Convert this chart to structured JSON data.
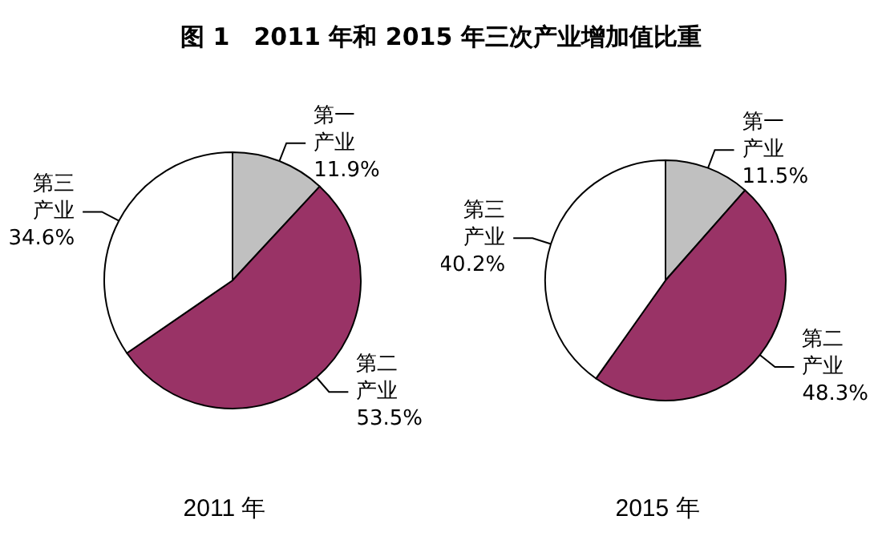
{
  "chart_data": [
    {
      "type": "pie",
      "title": "图 1　2011 年和 2015 年三次产业增加值比重",
      "xlabel": "2011 年",
      "categories": [
        "第一产业",
        "第二产业",
        "第三产业"
      ],
      "values": [
        11.9,
        53.5,
        34.6
      ],
      "colors": [
        "#c0c0c0",
        "#993366",
        "#ffffff"
      ],
      "value_labels": [
        "11.9%",
        "53.5%",
        "34.6%"
      ]
    },
    {
      "type": "pie",
      "xlabel": "2015 年",
      "categories": [
        "第一产业",
        "第二产业",
        "第三产业"
      ],
      "values": [
        11.5,
        48.3,
        40.2
      ],
      "colors": [
        "#c0c0c0",
        "#993366",
        "#ffffff"
      ],
      "value_labels": [
        "11.5%",
        "48.3%",
        "40.2%"
      ]
    }
  ]
}
